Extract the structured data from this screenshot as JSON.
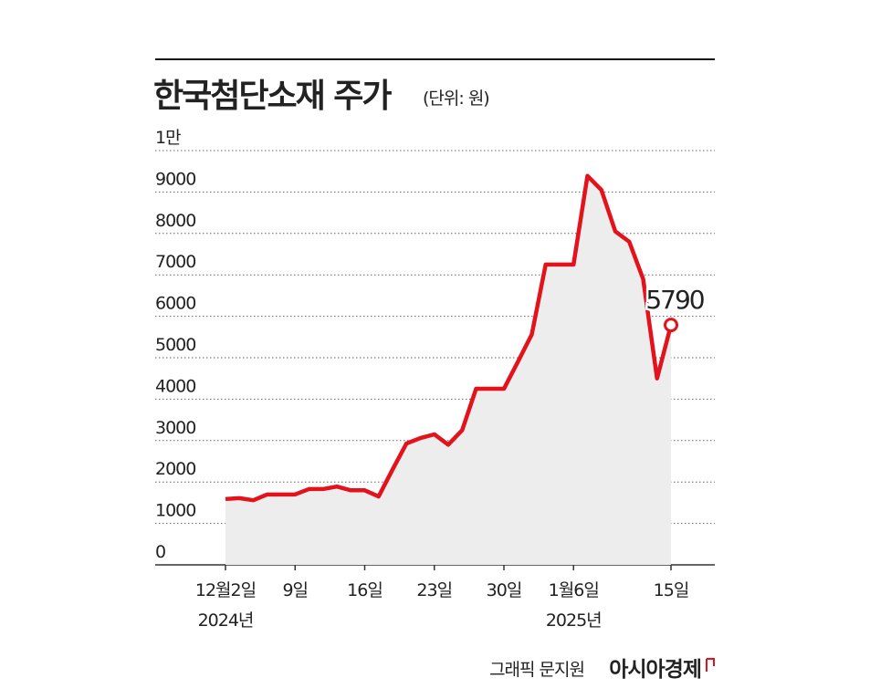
{
  "chart_data": {
    "type": "line",
    "title": "한국첨단소재 주가",
    "unit": "(단위: 원)",
    "categories": [
      "12월2일",
      null,
      null,
      null,
      null,
      "9일",
      null,
      null,
      null,
      null,
      "16일",
      null,
      null,
      null,
      null,
      "23일",
      null,
      null,
      null,
      null,
      "30일",
      null,
      null,
      null,
      null,
      "1월6일",
      null,
      null,
      null,
      null,
      null,
      null,
      "15일"
    ],
    "category_sublabels": [
      "2024년",
      null,
      null,
      null,
      null,
      null,
      null,
      null,
      null,
      null,
      null,
      null,
      null,
      null,
      null,
      null,
      null,
      null,
      null,
      null,
      null,
      null,
      null,
      null,
      null,
      "2025년",
      null,
      null,
      null,
      null,
      null,
      null,
      null
    ],
    "series": [
      {
        "name": "한국첨단소재",
        "color": "#e3121b",
        "area_color": "#ededed",
        "values": [
          1590,
          1610,
          1560,
          1700,
          1700,
          1700,
          1830,
          1830,
          1890,
          1800,
          1800,
          1650,
          2300,
          2930,
          3060,
          3150,
          2900,
          3250,
          4250,
          4250,
          4250,
          4900,
          5560,
          7250,
          7250,
          7250,
          9390,
          9050,
          8050,
          7800,
          6900,
          4500,
          5790
        ]
      }
    ],
    "ylim": [
      0,
      10000
    ],
    "yticks": [
      0,
      1000,
      2000,
      3000,
      4000,
      5000,
      6000,
      7000,
      8000,
      9000,
      {
        "value": 10000,
        "label": "1만"
      }
    ],
    "grid": true,
    "end_marker": true,
    "credit": "그래픽 문지원",
    "source": "아시아경제"
  }
}
